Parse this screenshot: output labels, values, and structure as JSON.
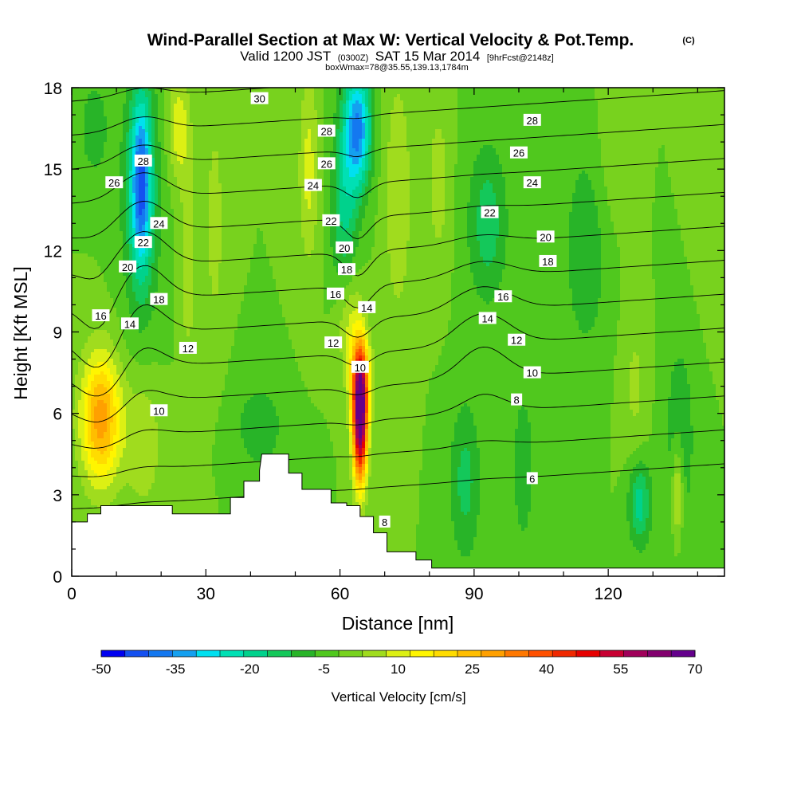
{
  "chart_data": {
    "type": "heatmap",
    "title": "Wind-Parallel Section at Max W: Vertical Velocity & Pot.Temp.",
    "title_mark": "(C)",
    "subtitle": {
      "valid_prefix": "Valid 1200 JST",
      "utc": "(0300Z)",
      "date": "SAT 15 Mar 2014",
      "forecast": "[9hrFcst@2148z]",
      "box_info": "boxWmax=78@35.55,139.13,1784m"
    },
    "xlabel": "Distance [nm]",
    "ylabel": "Height [Kft MSL]",
    "xlim": [
      0,
      146
    ],
    "ylim": [
      0,
      18
    ],
    "x_ticks": [
      "0",
      "30",
      "60",
      "90",
      "120"
    ],
    "y_ticks": [
      "0",
      "3",
      "6",
      "9",
      "12",
      "15",
      "18"
    ],
    "colorbar": {
      "label": "Vertical Velocity [cm/s]",
      "range": [
        -50,
        70
      ],
      "step": 5,
      "tick_labels": [
        "-50",
        "-35",
        "-20",
        "-5",
        "10",
        "25",
        "40",
        "55",
        "70"
      ],
      "colors": [
        "#0000f0",
        "#1450f0",
        "#1478f0",
        "#14a0f0",
        "#00e0f0",
        "#00e0b4",
        "#00d28c",
        "#14c85a",
        "#28b428",
        "#50c81e",
        "#78d21e",
        "#a0dc1e",
        "#dcf014",
        "#fff500",
        "#ffdc00",
        "#ffbe00",
        "#ffa000",
        "#ff7800",
        "#ff5000",
        "#f02800",
        "#e60000",
        "#c80032",
        "#a0005a",
        "#82006e",
        "#64008c"
      ]
    },
    "velocity_features": [
      {
        "x": 15.5,
        "z": 14.5,
        "w": -32,
        "sx": 2.2,
        "sz": 3.0
      },
      {
        "x": 15.5,
        "z": 14.0,
        "w": -13,
        "sx": 4.5,
        "sz": 5.0
      },
      {
        "x": 5,
        "z": 16.5,
        "w": -8,
        "sx": 3.5,
        "sz": 2.0
      },
      {
        "x": 24,
        "z": 16.5,
        "w": 14,
        "sx": 2.5,
        "sz": 2.0
      },
      {
        "x": 26,
        "z": 11.5,
        "w": 9,
        "sx": 1.8,
        "sz": 3.5
      },
      {
        "x": 32,
        "z": 13,
        "w": 8,
        "sx": 2.0,
        "sz": 4.0
      },
      {
        "x": 64,
        "z": 16.5,
        "w": -35,
        "sx": 3.0,
        "sz": 2.2
      },
      {
        "x": 61,
        "z": 13.5,
        "w": -16,
        "sx": 3.0,
        "sz": 3.5
      },
      {
        "x": 53,
        "z": 15,
        "w": 12,
        "sx": 2.2,
        "sz": 3.5
      },
      {
        "x": 73,
        "z": 14,
        "w": 10,
        "sx": 3.0,
        "sz": 4.5
      },
      {
        "x": 82,
        "z": 14.5,
        "w": 8,
        "sx": 2.5,
        "sz": 3.0
      },
      {
        "x": 62,
        "z": 9.5,
        "w": 12,
        "sx": 3.0,
        "sz": 2.0
      },
      {
        "x": 64.5,
        "z": 5.8,
        "w": 74,
        "sx": 1.6,
        "sz": 2.3
      },
      {
        "x": 64.5,
        "z": 7.3,
        "w": 22,
        "sx": 2.5,
        "sz": 1.6
      },
      {
        "x": 6.5,
        "z": 5.8,
        "w": 33,
        "sx": 4.5,
        "sz": 2.4
      },
      {
        "x": 16,
        "z": 5.0,
        "w": 10,
        "sx": 4.0,
        "sz": 2.5
      },
      {
        "x": 93,
        "z": 13,
        "w": -13,
        "sx": 4.5,
        "sz": 3.0
      },
      {
        "x": 88,
        "z": 3.5,
        "w": -12,
        "sx": 3.5,
        "sz": 3.0
      },
      {
        "x": 101,
        "z": 4,
        "w": -9,
        "sx": 2.5,
        "sz": 3.0
      },
      {
        "x": 115,
        "z": 12,
        "w": -9,
        "sx": 5.0,
        "sz": 4.0
      },
      {
        "x": 136,
        "z": 5,
        "w": -8,
        "sx": 4.0,
        "sz": 4.5
      },
      {
        "x": 127,
        "z": 2.7,
        "w": -18,
        "sx": 2.5,
        "sz": 1.6
      },
      {
        "x": 135.5,
        "z": 3,
        "w": 16,
        "sx": 1.2,
        "sz": 1.8
      },
      {
        "x": 126,
        "z": 7,
        "w": 6,
        "sx": 3.0,
        "sz": 3.0
      },
      {
        "x": 42,
        "z": 5.5,
        "w": -10,
        "sx": 5.0,
        "sz": 1.5
      },
      {
        "x": 121,
        "z": 15.5,
        "w": 4,
        "sx": 4.0,
        "sz": 3.0
      },
      {
        "x": 142,
        "z": 14,
        "w": 4,
        "sx": 4.0,
        "sz": 4.0
      }
    ],
    "terrain": [
      [
        0,
        2.0
      ],
      [
        3.5,
        2.0
      ],
      [
        3.5,
        2.3
      ],
      [
        6.5,
        2.3
      ],
      [
        6.5,
        2.6
      ],
      [
        22.5,
        2.6
      ],
      [
        22.5,
        2.3
      ],
      [
        35.5,
        2.3
      ],
      [
        35.5,
        2.9
      ],
      [
        38.5,
        2.9
      ],
      [
        38.5,
        3.5
      ],
      [
        42,
        3.5
      ],
      [
        42,
        3.9
      ],
      [
        42.5,
        4.5
      ],
      [
        48.5,
        4.5
      ],
      [
        48.5,
        3.8
      ],
      [
        51.5,
        3.8
      ],
      [
        51.5,
        3.2
      ],
      [
        58,
        3.2
      ],
      [
        58,
        2.7
      ],
      [
        61.5,
        2.7
      ],
      [
        61.5,
        2.6
      ],
      [
        64.5,
        2.6
      ],
      [
        64.5,
        2.2
      ],
      [
        67.5,
        2.2
      ],
      [
        67.5,
        1.6
      ],
      [
        70.5,
        1.6
      ],
      [
        70.5,
        0.9
      ],
      [
        73.5,
        0.9
      ],
      [
        73.5,
        0.9
      ],
      [
        77,
        0.9
      ],
      [
        77,
        0.6
      ],
      [
        80.5,
        0.6
      ],
      [
        80.5,
        0.3
      ],
      [
        146,
        0.3
      ]
    ],
    "theta_contour_levels": [
      6,
      8,
      10,
      12,
      14,
      16,
      18,
      20,
      22,
      24,
      26,
      28,
      30
    ],
    "contour_labels": [
      {
        "text": "30",
        "x": 42,
        "z": 17.6
      },
      {
        "text": "28",
        "x": 16,
        "z": 15.3
      },
      {
        "text": "28",
        "x": 57,
        "z": 16.4
      },
      {
        "text": "28",
        "x": 103,
        "z": 16.8
      },
      {
        "text": "26",
        "x": 9.5,
        "z": 14.5
      },
      {
        "text": "26",
        "x": 57,
        "z": 15.2
      },
      {
        "text": "26",
        "x": 100,
        "z": 15.6
      },
      {
        "text": "24",
        "x": 19.5,
        "z": 13.0
      },
      {
        "text": "24",
        "x": 54,
        "z": 14.4
      },
      {
        "text": "24",
        "x": 103,
        "z": 14.5
      },
      {
        "text": "22",
        "x": 16,
        "z": 12.3
      },
      {
        "text": "22",
        "x": 58,
        "z": 13.1
      },
      {
        "text": "22",
        "x": 93.5,
        "z": 13.4
      },
      {
        "text": "20",
        "x": 12.5,
        "z": 11.4
      },
      {
        "text": "20",
        "x": 61,
        "z": 12.1
      },
      {
        "text": "20",
        "x": 106,
        "z": 12.5
      },
      {
        "text": "18",
        "x": 19.5,
        "z": 10.2
      },
      {
        "text": "18",
        "x": 61.5,
        "z": 11.3
      },
      {
        "text": "18",
        "x": 106.5,
        "z": 11.6
      },
      {
        "text": "16",
        "x": 6.5,
        "z": 9.6
      },
      {
        "text": "16",
        "x": 59,
        "z": 10.4
      },
      {
        "text": "16",
        "x": 96.5,
        "z": 10.3
      },
      {
        "text": "14",
        "x": 13,
        "z": 9.3
      },
      {
        "text": "14",
        "x": 66,
        "z": 9.9
      },
      {
        "text": "14",
        "x": 93,
        "z": 9.5
      },
      {
        "text": "12",
        "x": 26,
        "z": 8.4
      },
      {
        "text": "12",
        "x": 58.5,
        "z": 8.6
      },
      {
        "text": "12",
        "x": 99.5,
        "z": 8.7
      },
      {
        "text": "10",
        "x": 64.5,
        "z": 7.7
      },
      {
        "text": "10",
        "x": 103,
        "z": 7.5
      },
      {
        "text": "10",
        "x": 19.5,
        "z": 6.1
      },
      {
        "text": "8",
        "x": 99.5,
        "z": 6.5
      },
      {
        "text": "8",
        "x": 70,
        "z": 2.0
      },
      {
        "text": "6",
        "x": 103,
        "z": 3.6
      }
    ]
  }
}
